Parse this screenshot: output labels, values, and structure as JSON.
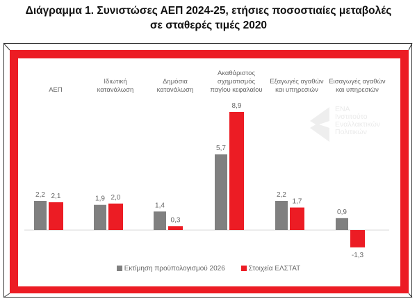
{
  "chart_data": {
    "type": "bar",
    "title": [
      "Διάγραμμα 1. Συνιστώσες ΑΕΠ 2024-25, ετήσιες ποσοστιαίες μεταβολές",
      "σε σταθερές τιμές 2020"
    ],
    "categories": [
      [
        "ΑΕΠ"
      ],
      [
        "Ιδιωτική",
        "κατανάλωση"
      ],
      [
        "Δημόσια",
        "κατανάλωση"
      ],
      [
        "Ακαθάριστος",
        "σχηματισμός",
        "παγίου κεφαλαίου"
      ],
      [
        "Εξαγωγές αγαθών",
        "και υπηρεσιών"
      ],
      [
        "Εισαγωγές αγαθών",
        "και υπηρεσιών"
      ]
    ],
    "series": [
      {
        "name": "Εκτίμηση προϋπολογισμού 2026",
        "color": "#808080",
        "values": [
          2.2,
          1.9,
          1.4,
          5.7,
          2.2,
          0.9
        ],
        "labels": [
          "2,2",
          "1,9",
          "1,4",
          "5,7",
          "2,2",
          "0,9"
        ]
      },
      {
        "name": "Στοιχεία ΕΛΣΤΑΤ",
        "color": "#ec1c24",
        "values": [
          2.1,
          2.0,
          0.3,
          8.9,
          1.7,
          -1.3
        ],
        "labels": [
          "2,1",
          "2,0",
          "0,3",
          "8,9",
          "1,7",
          "-1,3"
        ]
      }
    ],
    "ylim": [
      -1.5,
      9.5
    ],
    "grid": false,
    "legend": "bottom",
    "data_labels": true
  },
  "watermark": [
    "ΕΝΑ",
    "Ινστιτούτο",
    "Εναλλακτικών",
    "Πολιτικών"
  ]
}
